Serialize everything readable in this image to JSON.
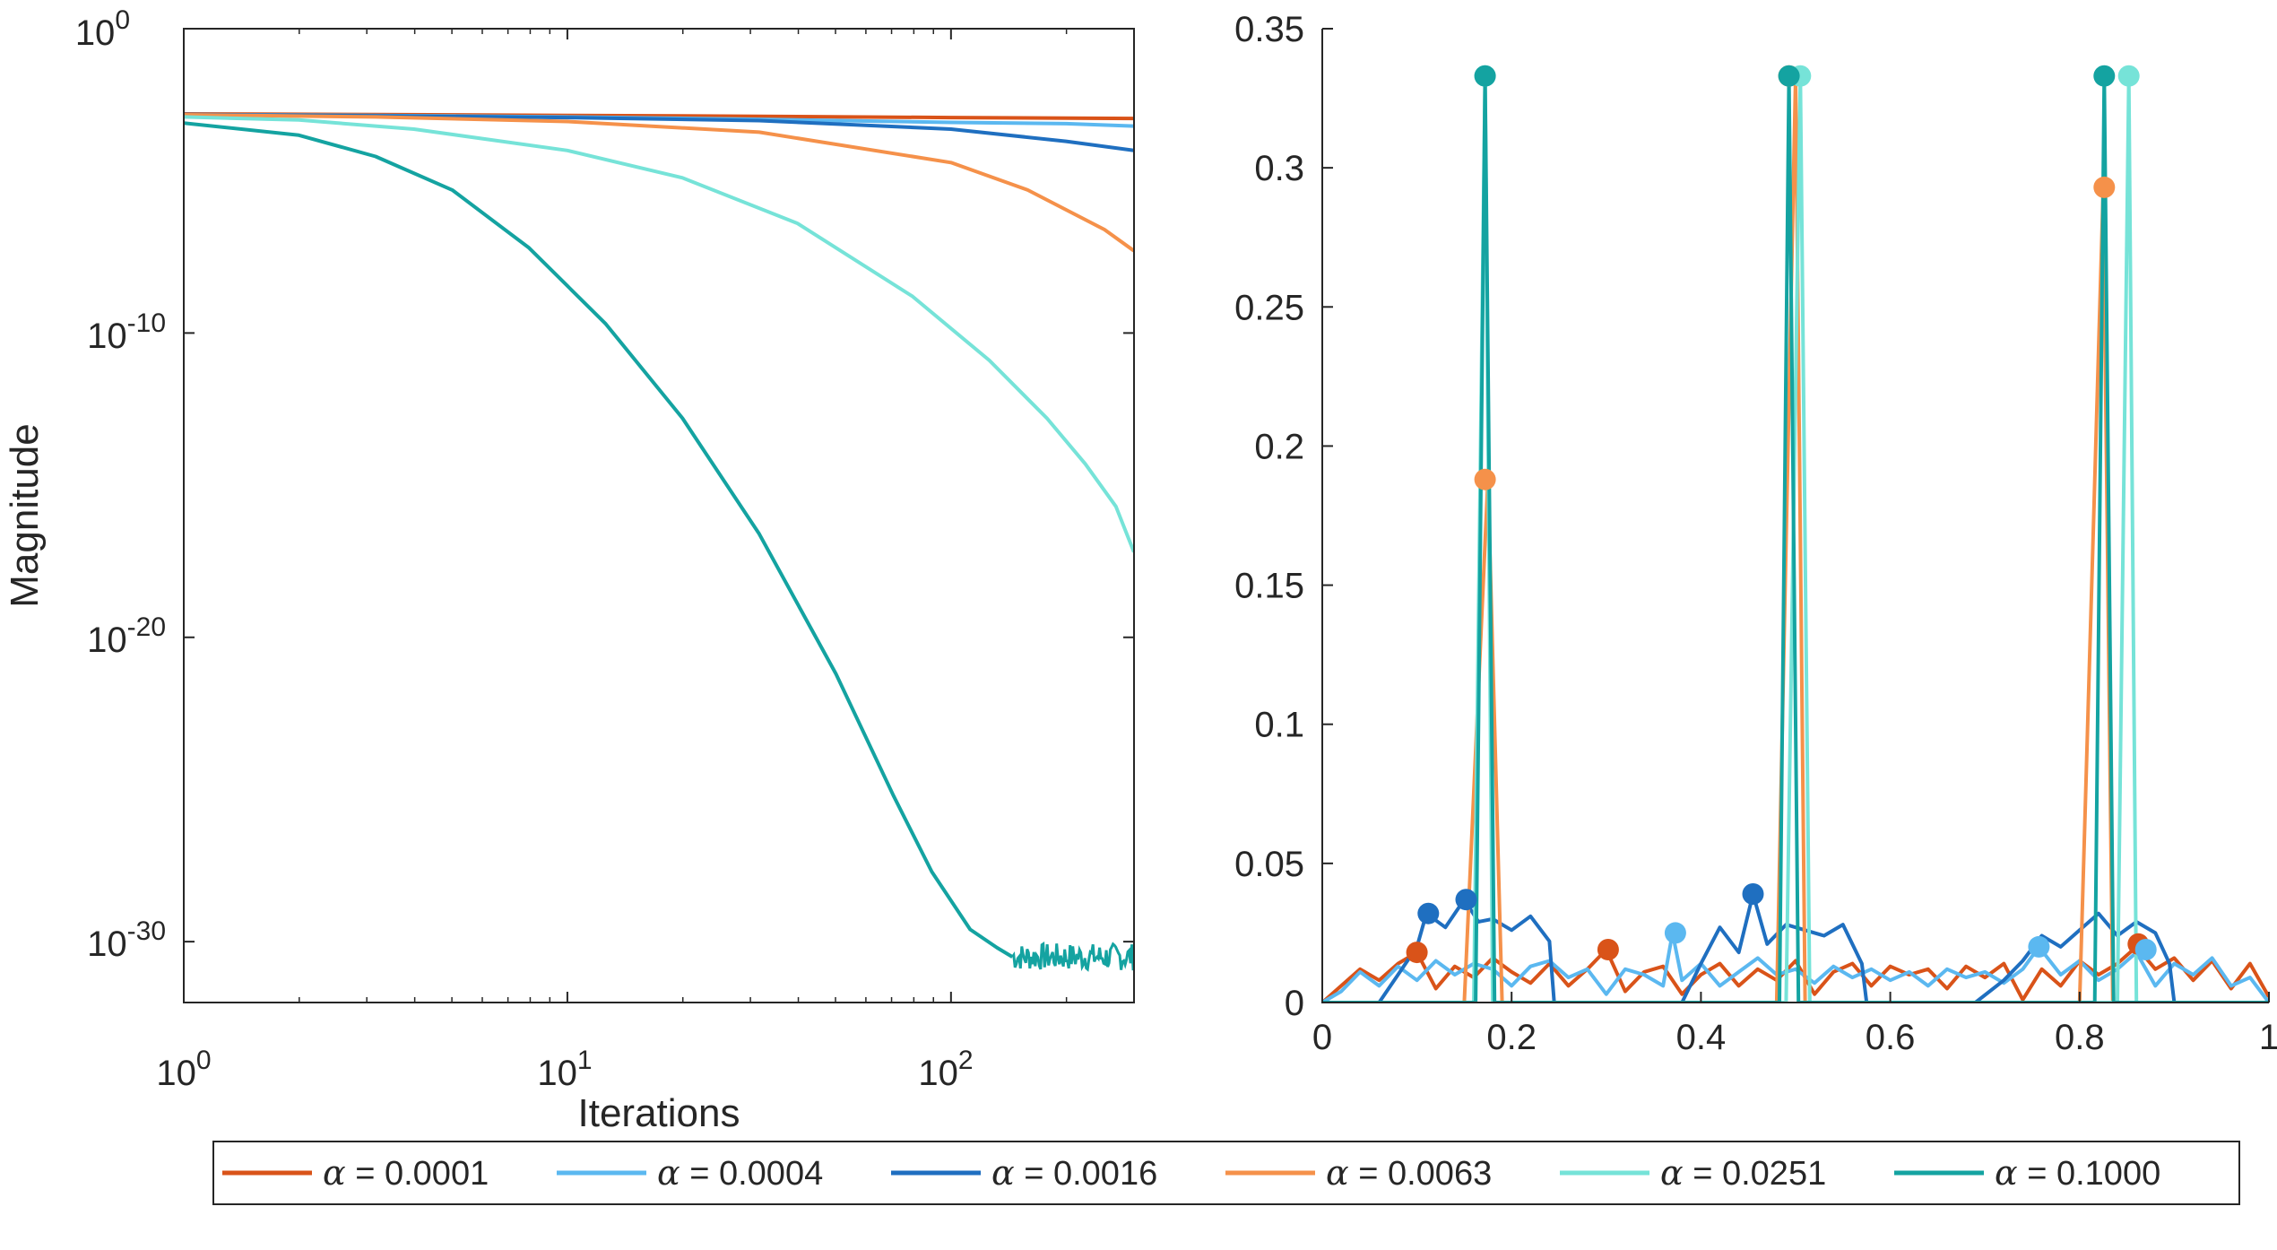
{
  "chart_data": [
    {
      "type": "line",
      "xscale": "log",
      "yscale": "log",
      "xlabel": "Iterations",
      "ylabel": "Magnitude",
      "xlim": [
        1,
        300
      ],
      "ylim": [
        1e-32,
        1
      ],
      "x_ticks": [
        {
          "base": "10",
          "exp": "0"
        },
        {
          "base": "10",
          "exp": "1"
        },
        {
          "base": "10",
          "exp": "2"
        }
      ],
      "y_ticks": [
        {
          "base": "10",
          "exp": "0"
        },
        {
          "base": "10",
          "exp": "-10"
        },
        {
          "base": "10",
          "exp": "-20"
        },
        {
          "base": "10",
          "exp": "-30"
        }
      ],
      "x_tick_values": [
        1,
        10,
        100
      ],
      "y_tick_values": [
        1,
        1e-10,
        1e-20,
        1e-30
      ],
      "series": [
        {
          "name": "α = 0.0001",
          "color": "#D95319",
          "log10_x": [
            0,
            0.5,
            1,
            1.5,
            2,
            2.477
          ],
          "log10_y": [
            -2.8,
            -2.82,
            -2.85,
            -2.88,
            -2.92,
            -2.95
          ]
        },
        {
          "name": "α = 0.0004",
          "color": "#5BB8F0",
          "log10_x": [
            0,
            0.5,
            1,
            1.5,
            2,
            2.3,
            2.477
          ],
          "log10_y": [
            -2.82,
            -2.85,
            -2.9,
            -2.98,
            -3.08,
            -3.12,
            -3.2
          ]
        },
        {
          "name": "α = 0.0016",
          "color": "#1F6FC0",
          "log10_x": [
            0,
            0.5,
            1,
            1.5,
            2,
            2.3,
            2.477
          ],
          "log10_y": [
            -2.82,
            -2.86,
            -2.92,
            -3.02,
            -3.3,
            -3.7,
            -4
          ]
        },
        {
          "name": "α = 0.0063",
          "color": "#F5914A",
          "log10_x": [
            0,
            0.5,
            1,
            1.5,
            2,
            2.2,
            2.4,
            2.477
          ],
          "log10_y": [
            -2.83,
            -2.9,
            -3.05,
            -3.4,
            -4.4,
            -5.3,
            -6.6,
            -7.3
          ]
        },
        {
          "name": "α = 0.0251",
          "color": "#76E3D8",
          "log10_x": [
            0,
            0.3,
            0.6,
            1,
            1.3,
            1.6,
            1.9,
            2.1,
            2.25,
            2.35,
            2.43,
            2.477
          ],
          "log10_y": [
            -2.9,
            -3,
            -3.3,
            -4,
            -4.9,
            -6.4,
            -8.8,
            -10.9,
            -12.8,
            -14.3,
            -15.7,
            -17.2
          ]
        },
        {
          "name": "α = 0.1000",
          "color": "#14A3A1",
          "log10_x": [
            0,
            0.3,
            0.5,
            0.7,
            0.9,
            1.1,
            1.3,
            1.5,
            1.7,
            1.85,
            1.95,
            2.05,
            2.12,
            2.16
          ],
          "log10_y": [
            -3.1,
            -3.5,
            -4.2,
            -5.3,
            -7.2,
            -9.7,
            -12.8,
            -16.6,
            -21.2,
            -25.2,
            -27.7,
            -29.6,
            -30.2,
            -30.5
          ]
        }
      ]
    },
    {
      "type": "line",
      "xlim": [
        0,
        1
      ],
      "ylim": [
        0,
        0.35
      ],
      "x_tick_values": [
        0,
        0.2,
        0.4,
        0.6,
        0.8,
        1
      ],
      "y_tick_values": [
        0,
        0.05,
        0.1,
        0.15,
        0.2,
        0.25,
        0.3,
        0.35
      ],
      "x_tick_labels": [
        "0",
        "0.2",
        "0.4",
        "0.6",
        "0.8",
        "1"
      ],
      "y_tick_labels": [
        "0",
        "0.05",
        "0.1",
        "0.15",
        "0.2",
        "0.25",
        "0.3",
        "0.35"
      ],
      "series": [
        {
          "name": "α = 0.0001",
          "color": "#D95319",
          "x": [
            0,
            0.02,
            0.04,
            0.06,
            0.08,
            0.1,
            0.12,
            0.14,
            0.16,
            0.18,
            0.2,
            0.22,
            0.24,
            0.26,
            0.28,
            0.3,
            0.32,
            0.34,
            0.36,
            0.38,
            0.4,
            0.42,
            0.44,
            0.46,
            0.48,
            0.5,
            0.52,
            0.54,
            0.56,
            0.58,
            0.6,
            0.62,
            0.64,
            0.66,
            0.68,
            0.7,
            0.72,
            0.74,
            0.76,
            0.78,
            0.8,
            0.82,
            0.84,
            0.86,
            0.88,
            0.9,
            0.92,
            0.94,
            0.96,
            0.98,
            1
          ],
          "y": [
            0,
            0.006,
            0.012,
            0.008,
            0.014,
            0.018,
            0.005,
            0.013,
            0.009,
            0.016,
            0.011,
            0.007,
            0.014,
            0.006,
            0.012,
            0.019,
            0.004,
            0.011,
            0.013,
            0.003,
            0.01,
            0.014,
            0.006,
            0.012,
            0.008,
            0.015,
            0.003,
            0.011,
            0.014,
            0.006,
            0.013,
            0.01,
            0.012,
            0.005,
            0.013,
            0.009,
            0.014,
            0.001,
            0.012,
            0.006,
            0.015,
            0.01,
            0.014,
            0.02,
            0.012,
            0.016,
            0.008,
            0.015,
            0.005,
            0.014,
            0.002
          ],
          "markers": [
            [
              0.1,
              0.018
            ],
            [
              0.302,
              0.019
            ],
            [
              0.862,
              0.021
            ]
          ]
        },
        {
          "name": "α = 0.0004",
          "color": "#5BB8F0",
          "x": [
            0,
            0.02,
            0.04,
            0.06,
            0.08,
            0.1,
            0.12,
            0.14,
            0.16,
            0.18,
            0.2,
            0.22,
            0.24,
            0.26,
            0.28,
            0.3,
            0.32,
            0.34,
            0.36,
            0.37,
            0.38,
            0.4,
            0.42,
            0.44,
            0.46,
            0.48,
            0.5,
            0.52,
            0.54,
            0.56,
            0.58,
            0.6,
            0.62,
            0.64,
            0.66,
            0.68,
            0.7,
            0.72,
            0.74,
            0.757,
            0.78,
            0.8,
            0.82,
            0.84,
            0.86,
            0.88,
            0.9,
            0.92,
            0.94,
            0.96,
            0.98,
            1
          ],
          "y": [
            0,
            0.004,
            0.011,
            0.006,
            0.013,
            0.008,
            0.015,
            0.01,
            0.014,
            0.012,
            0.006,
            0.013,
            0.015,
            0.009,
            0.012,
            0.003,
            0.012,
            0.01,
            0.006,
            0.025,
            0.008,
            0.014,
            0.006,
            0.011,
            0.016,
            0.01,
            0.012,
            0.007,
            0.013,
            0.009,
            0.012,
            0.008,
            0.011,
            0.006,
            0.012,
            0.009,
            0.011,
            0.007,
            0.012,
            0.02,
            0.01,
            0.015,
            0.008,
            0.012,
            0.018,
            0.006,
            0.014,
            0.01,
            0.016,
            0.006,
            0.009,
            0
          ],
          "markers": [
            [
              0.373,
              0.025
            ],
            [
              0.757,
              0.02
            ],
            [
              0.87,
              0.019
            ]
          ]
        },
        {
          "name": "α = 0.0016",
          "color": "#1F6FC0",
          "x": [
            0,
            0.06,
            0.08,
            0.1,
            0.11,
            0.13,
            0.15,
            0.165,
            0.18,
            0.2,
            0.22,
            0.24,
            0.245,
            0.34,
            0.38,
            0.4,
            0.42,
            0.44,
            0.455,
            0.47,
            0.49,
            0.51,
            0.53,
            0.55,
            0.57,
            0.575,
            0.69,
            0.72,
            0.74,
            0.76,
            0.78,
            0.8,
            0.82,
            0.84,
            0.86,
            0.88,
            0.895,
            0.9,
            1
          ],
          "y": [
            0,
            0,
            0.01,
            0.02,
            0.032,
            0.027,
            0.037,
            0.029,
            0.03,
            0.026,
            0.031,
            0.022,
            0,
            0,
            0,
            0.014,
            0.027,
            0.018,
            0.039,
            0.021,
            0.028,
            0.026,
            0.024,
            0.028,
            0.014,
            0,
            0,
            0.008,
            0.015,
            0.024,
            0.02,
            0.026,
            0.032,
            0.024,
            0.029,
            0.025,
            0.014,
            0,
            0
          ],
          "markers": [
            [
              0.112,
              0.032
            ],
            [
              0.152,
              0.037
            ],
            [
              0.455,
              0.039
            ]
          ]
        },
        {
          "name": "α = 0.0063",
          "color": "#F5914A",
          "x": [
            0,
            0.15,
            0.175,
            0.19,
            0.48,
            0.5,
            0.51,
            0.8,
            0.825,
            0.835,
            1
          ],
          "y": [
            0,
            0,
            0.188,
            0,
            0,
            0.333,
            0,
            0,
            0.293,
            0,
            0
          ],
          "markers": [
            [
              0.172,
              0.188
            ],
            [
              0.493,
              0.333
            ],
            [
              0.826,
              0.293
            ]
          ]
        },
        {
          "name": "α = 0.0251",
          "color": "#76E3D8",
          "x": [
            0,
            0.16,
            0.172,
            0.18,
            0.49,
            0.505,
            0.515,
            0.84,
            0.852,
            0.86,
            1
          ],
          "y": [
            0,
            0,
            0.333,
            0,
            0,
            0.333,
            0,
            0,
            0.333,
            0,
            0
          ],
          "markers": [
            [
              0.172,
              0.333
            ],
            [
              0.505,
              0.333
            ],
            [
              0.852,
              0.333
            ]
          ]
        },
        {
          "name": "α = 0.1000",
          "color": "#14A3A1",
          "x": [
            0,
            0.162,
            0.172,
            0.182,
            0.483,
            0.493,
            0.503,
            0.816,
            0.826,
            0.836,
            1
          ],
          "y": [
            0,
            0,
            0.333,
            0,
            0,
            0.333,
            0,
            0,
            0.333,
            0,
            0
          ],
          "markers": [
            [
              0.172,
              0.333
            ],
            [
              0.493,
              0.333
            ],
            [
              0.826,
              0.333
            ]
          ]
        }
      ]
    }
  ],
  "legend": {
    "symbol": "α",
    "placement": "bottom",
    "items": [
      {
        "symbol": "α",
        "value": " = 0.0001",
        "color": "#D95319"
      },
      {
        "symbol": "α",
        "value": " = 0.0004",
        "color": "#5BB8F0"
      },
      {
        "symbol": "α",
        "value": " = 0.0016",
        "color": "#1F6FC0"
      },
      {
        "symbol": "α",
        "value": " = 0.0063",
        "color": "#F5914A"
      },
      {
        "symbol": "α",
        "value": " = 0.0251",
        "color": "#76E3D8"
      },
      {
        "symbol": "α",
        "value": " = 0.1000",
        "color": "#14A3A1"
      }
    ]
  }
}
